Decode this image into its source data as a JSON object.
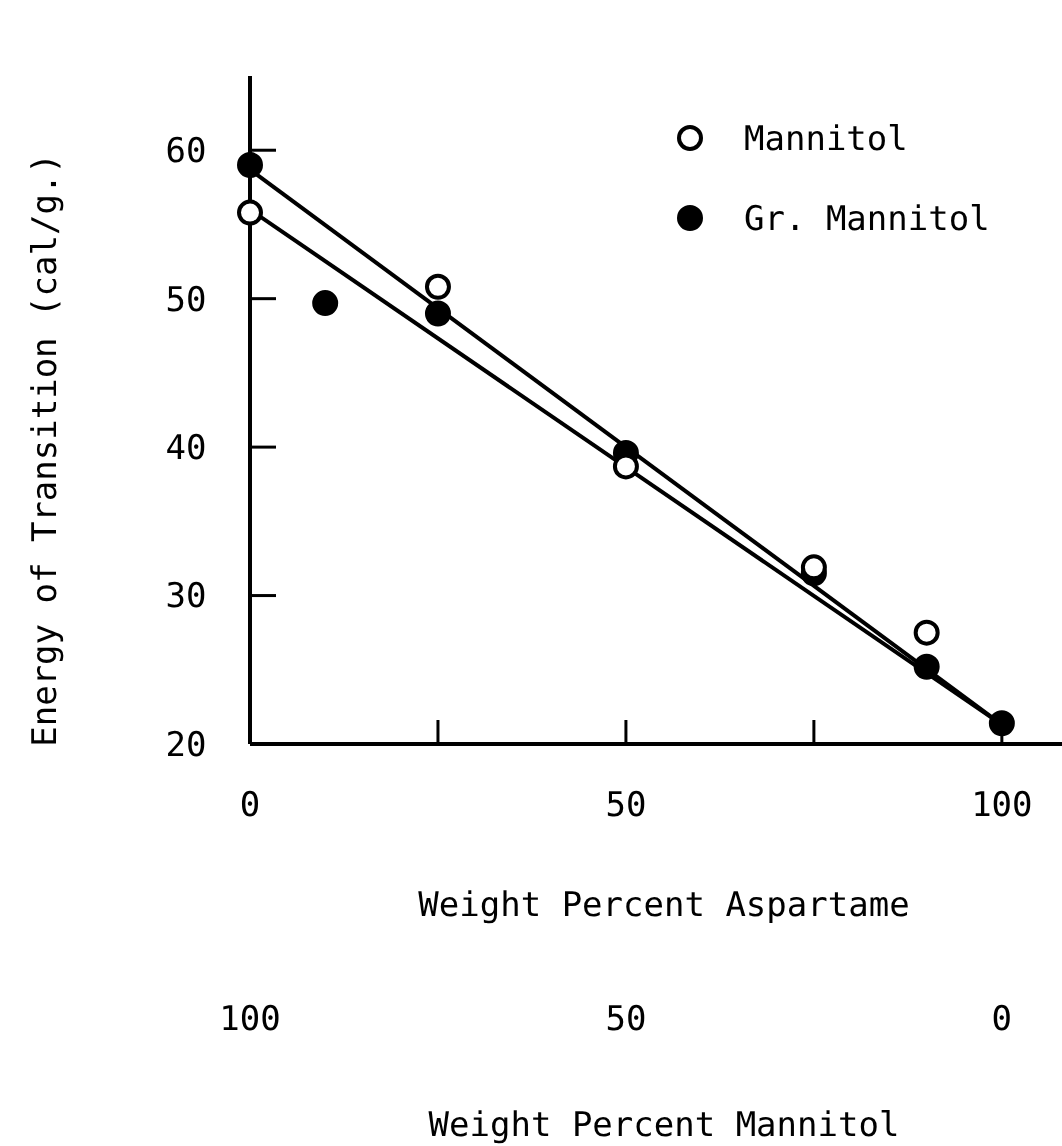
{
  "chart_data": {
    "type": "scatter",
    "xlabel": "Weight Percent Aspartame",
    "ylabel": "Energy of Transition (cal/g.)",
    "x2label": "Weight Percent Mannitol",
    "xlim": [
      0,
      108
    ],
    "xticks": [
      0,
      {
        "value": 25,
        "label": null
      },
      50,
      {
        "value": 75,
        "label": null
      },
      100
    ],
    "x2lim": [
      100,
      -8
    ],
    "x2ticks": [
      100,
      50,
      0
    ],
    "ylim": [
      20,
      65
    ],
    "yticks": [
      20,
      30,
      40,
      50,
      60
    ],
    "grid": false,
    "legend": "top right",
    "series": [
      {
        "name": "Mannitol",
        "color": "#ffffff",
        "marker": "circle",
        "x": [
          0,
          25,
          50,
          75,
          90
        ],
        "values": [
          55.8,
          50.8,
          38.7,
          31.9,
          27.5
        ]
      },
      {
        "name": "Gr. Mannitol",
        "color": "#000000",
        "marker": "circle",
        "x": [
          0,
          10,
          25,
          50,
          75,
          90,
          100
        ],
        "values": [
          59,
          49.7,
          49,
          39.6,
          31.5,
          25.2,
          21.4
        ]
      },
      {
        "type": "line",
        "color": "#000000",
        "x": [
          0,
          100
        ],
        "values": [
          56,
          21.3
        ]
      },
      {
        "type": "line",
        "color": "#000000",
        "x": [
          0,
          100
        ],
        "values": [
          58.7,
          21.3
        ]
      }
    ]
  }
}
